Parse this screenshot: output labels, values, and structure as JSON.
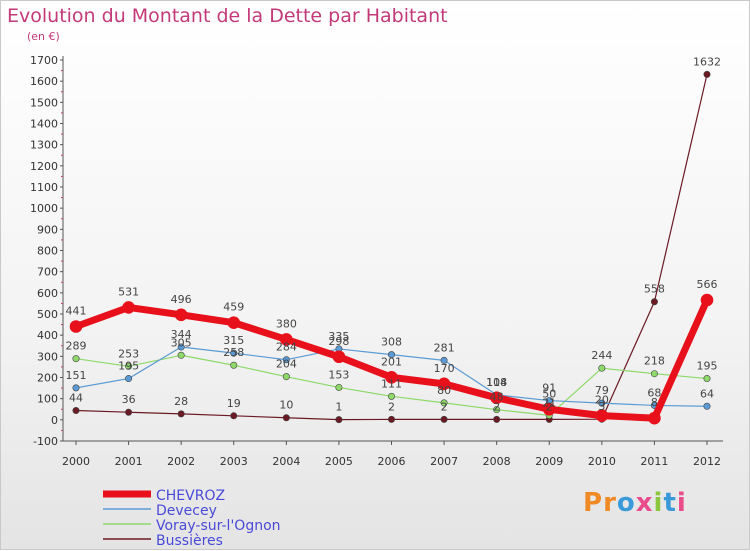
{
  "header": {
    "title": "Evolution du Montant de la Dette par Habitant",
    "subtitle": "(en €)"
  },
  "logo": {
    "text": "Proxiti",
    "colors": [
      "#f08a24",
      "#3a9ad9",
      "#8cc63f",
      "#e84c8b"
    ]
  },
  "chart_data": {
    "type": "line",
    "x": [
      "2000",
      "2001",
      "2002",
      "2003",
      "2004",
      "2005",
      "2006",
      "2007",
      "2008",
      "2009",
      "2010",
      "2011",
      "2012"
    ],
    "ylim": [
      -100,
      1700
    ],
    "yticks": [
      -100,
      0,
      100,
      200,
      300,
      400,
      500,
      600,
      700,
      800,
      900,
      1000,
      1100,
      1200,
      1300,
      1400,
      1500,
      1600,
      1700
    ],
    "grid": false,
    "legend": "bottom-left",
    "series": [
      {
        "name": "Bussières",
        "color": "#6b1a24",
        "width": 1.2,
        "values": [
          44,
          36,
          28,
          19,
          10,
          1,
          2,
          2,
          2,
          2,
          3,
          558,
          1632
        ],
        "labels": [
          "44",
          "36",
          "28",
          "19",
          "10",
          "1",
          "2",
          "2",
          "2",
          "2",
          "3",
          "558",
          "1632"
        ]
      },
      {
        "name": "Voray-sur-l'Ognon",
        "color": "#8ed96a",
        "width": 1.2,
        "values": [
          289,
          253,
          305,
          258,
          204,
          153,
          111,
          80,
          48,
          21,
          244,
          218,
          195
        ],
        "labels": [
          "289",
          "253",
          "305",
          "258",
          "204",
          "153",
          "111",
          "80",
          "48",
          "21",
          "244",
          "218",
          "195"
        ]
      },
      {
        "name": "Devecey",
        "color": "#5b9bd5",
        "width": 1.2,
        "values": [
          151,
          195,
          344,
          315,
          284,
          335,
          308,
          281,
          118,
          91,
          79,
          68,
          64
        ],
        "labels": [
          "151",
          "195",
          "344",
          "315",
          "284",
          "335",
          "308",
          "281",
          "118",
          "91",
          "79",
          "68",
          "64"
        ]
      },
      {
        "name": "CHEVROZ",
        "color": "#e8111b",
        "width": 7,
        "values": [
          441,
          531,
          496,
          459,
          380,
          298,
          201,
          170,
          104,
          50,
          20,
          8,
          566
        ],
        "labels": [
          "441",
          "531",
          "496",
          "459",
          "380",
          "298",
          "201",
          "170",
          "104",
          "50",
          "20",
          "8",
          "566"
        ]
      }
    ]
  }
}
